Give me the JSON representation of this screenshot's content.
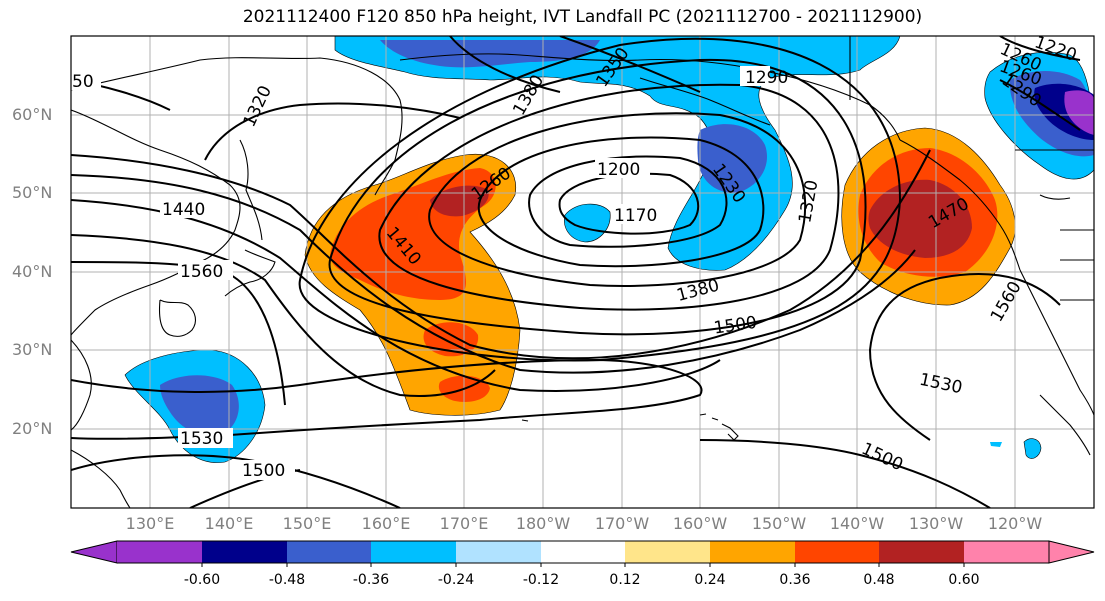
{
  "title": "2021112400 F120 850 hPa height, IVT Landfall PC (2021112700 - 2021112900)",
  "map": {
    "lat_labels": [
      "60°N",
      "50°N",
      "40°N",
      "30°N",
      "20°N"
    ],
    "lon_labels": [
      "130°E",
      "140°E",
      "150°E",
      "160°E",
      "170°E",
      "180°W",
      "170°W",
      "160°W",
      "150°W",
      "140°W",
      "130°W",
      "120°W"
    ],
    "contour_labels": [
      "1290",
      "1260",
      "1320",
      "1380",
      "1350",
      "1200",
      "1170",
      "1260",
      "1230",
      "1320",
      "1440",
      "1410",
      "1560",
      "1380",
      "1500",
      "1470",
      "1530",
      "1530",
      "1500",
      "1500",
      "1560",
      "1260",
      "1290",
      "1220",
      "50"
    ]
  },
  "colorbar": {
    "colors": [
      "#9932cc",
      "#00008b",
      "#3a5fcd",
      "#00bfff",
      "#b0e2ff",
      "#ffffff",
      "#ffe58a",
      "#ffa500",
      "#ff4500",
      "#b22222",
      "#ff82ab"
    ],
    "labels": [
      "-0.60",
      "-0.48",
      "-0.36",
      "-0.24",
      "-0.12",
      "0.12",
      "0.24",
      "0.36",
      "0.48",
      "0.60"
    ]
  }
}
